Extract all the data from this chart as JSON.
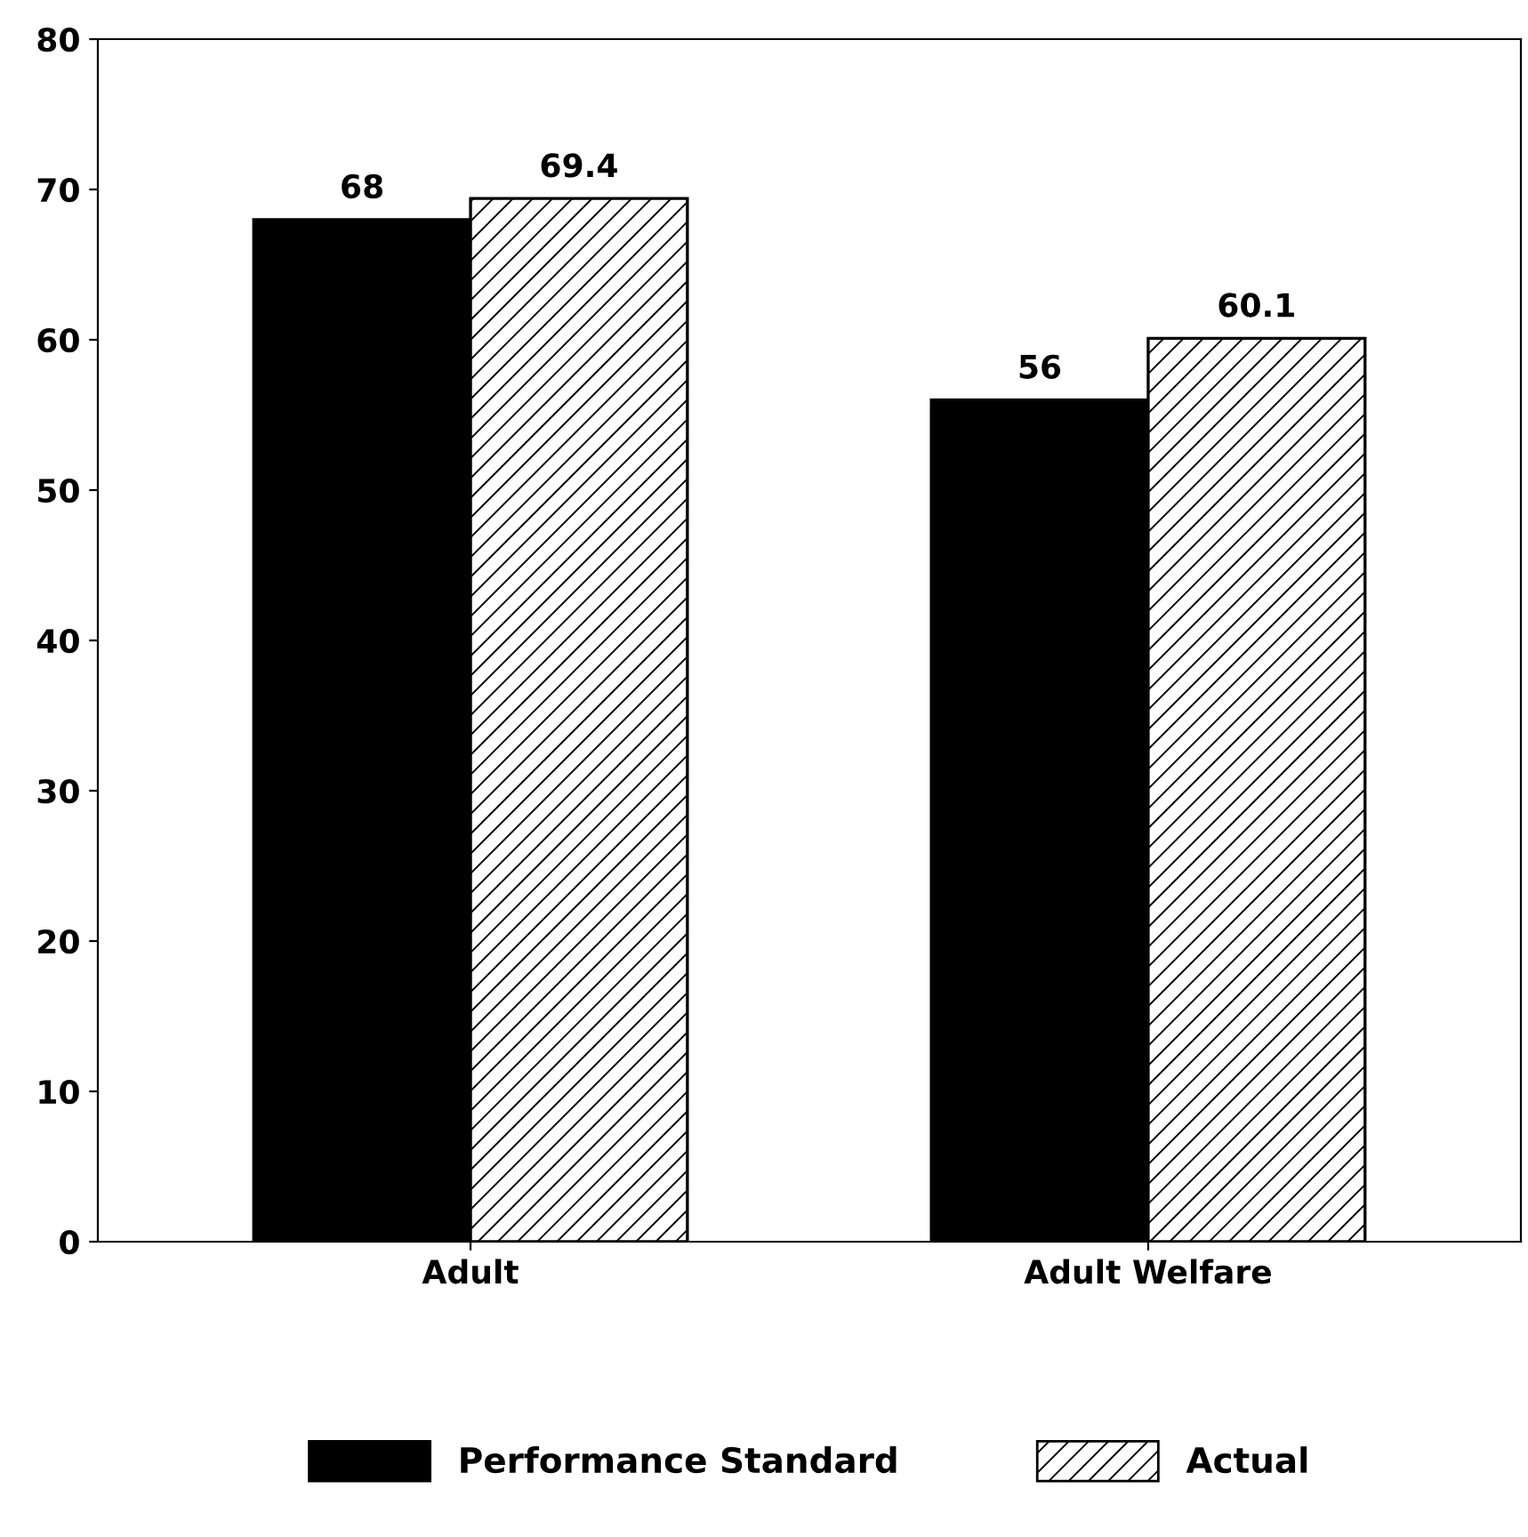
{
  "chart_data": {
    "type": "bar",
    "categories": [
      "Adult",
      "Adult Welfare"
    ],
    "series": [
      {
        "name": "Performance Standard",
        "color": "#000000",
        "values": [
          68,
          56
        ]
      },
      {
        "name": "Actual",
        "color": "#ffffff",
        "values": [
          69.4,
          60.1
        ]
      }
    ],
    "ylim": [
      0,
      80
    ],
    "yticks": [
      0,
      10,
      20,
      30,
      40,
      50,
      60,
      70,
      80
    ],
    "data_labels": true,
    "grid": false,
    "legend": "bottom"
  }
}
